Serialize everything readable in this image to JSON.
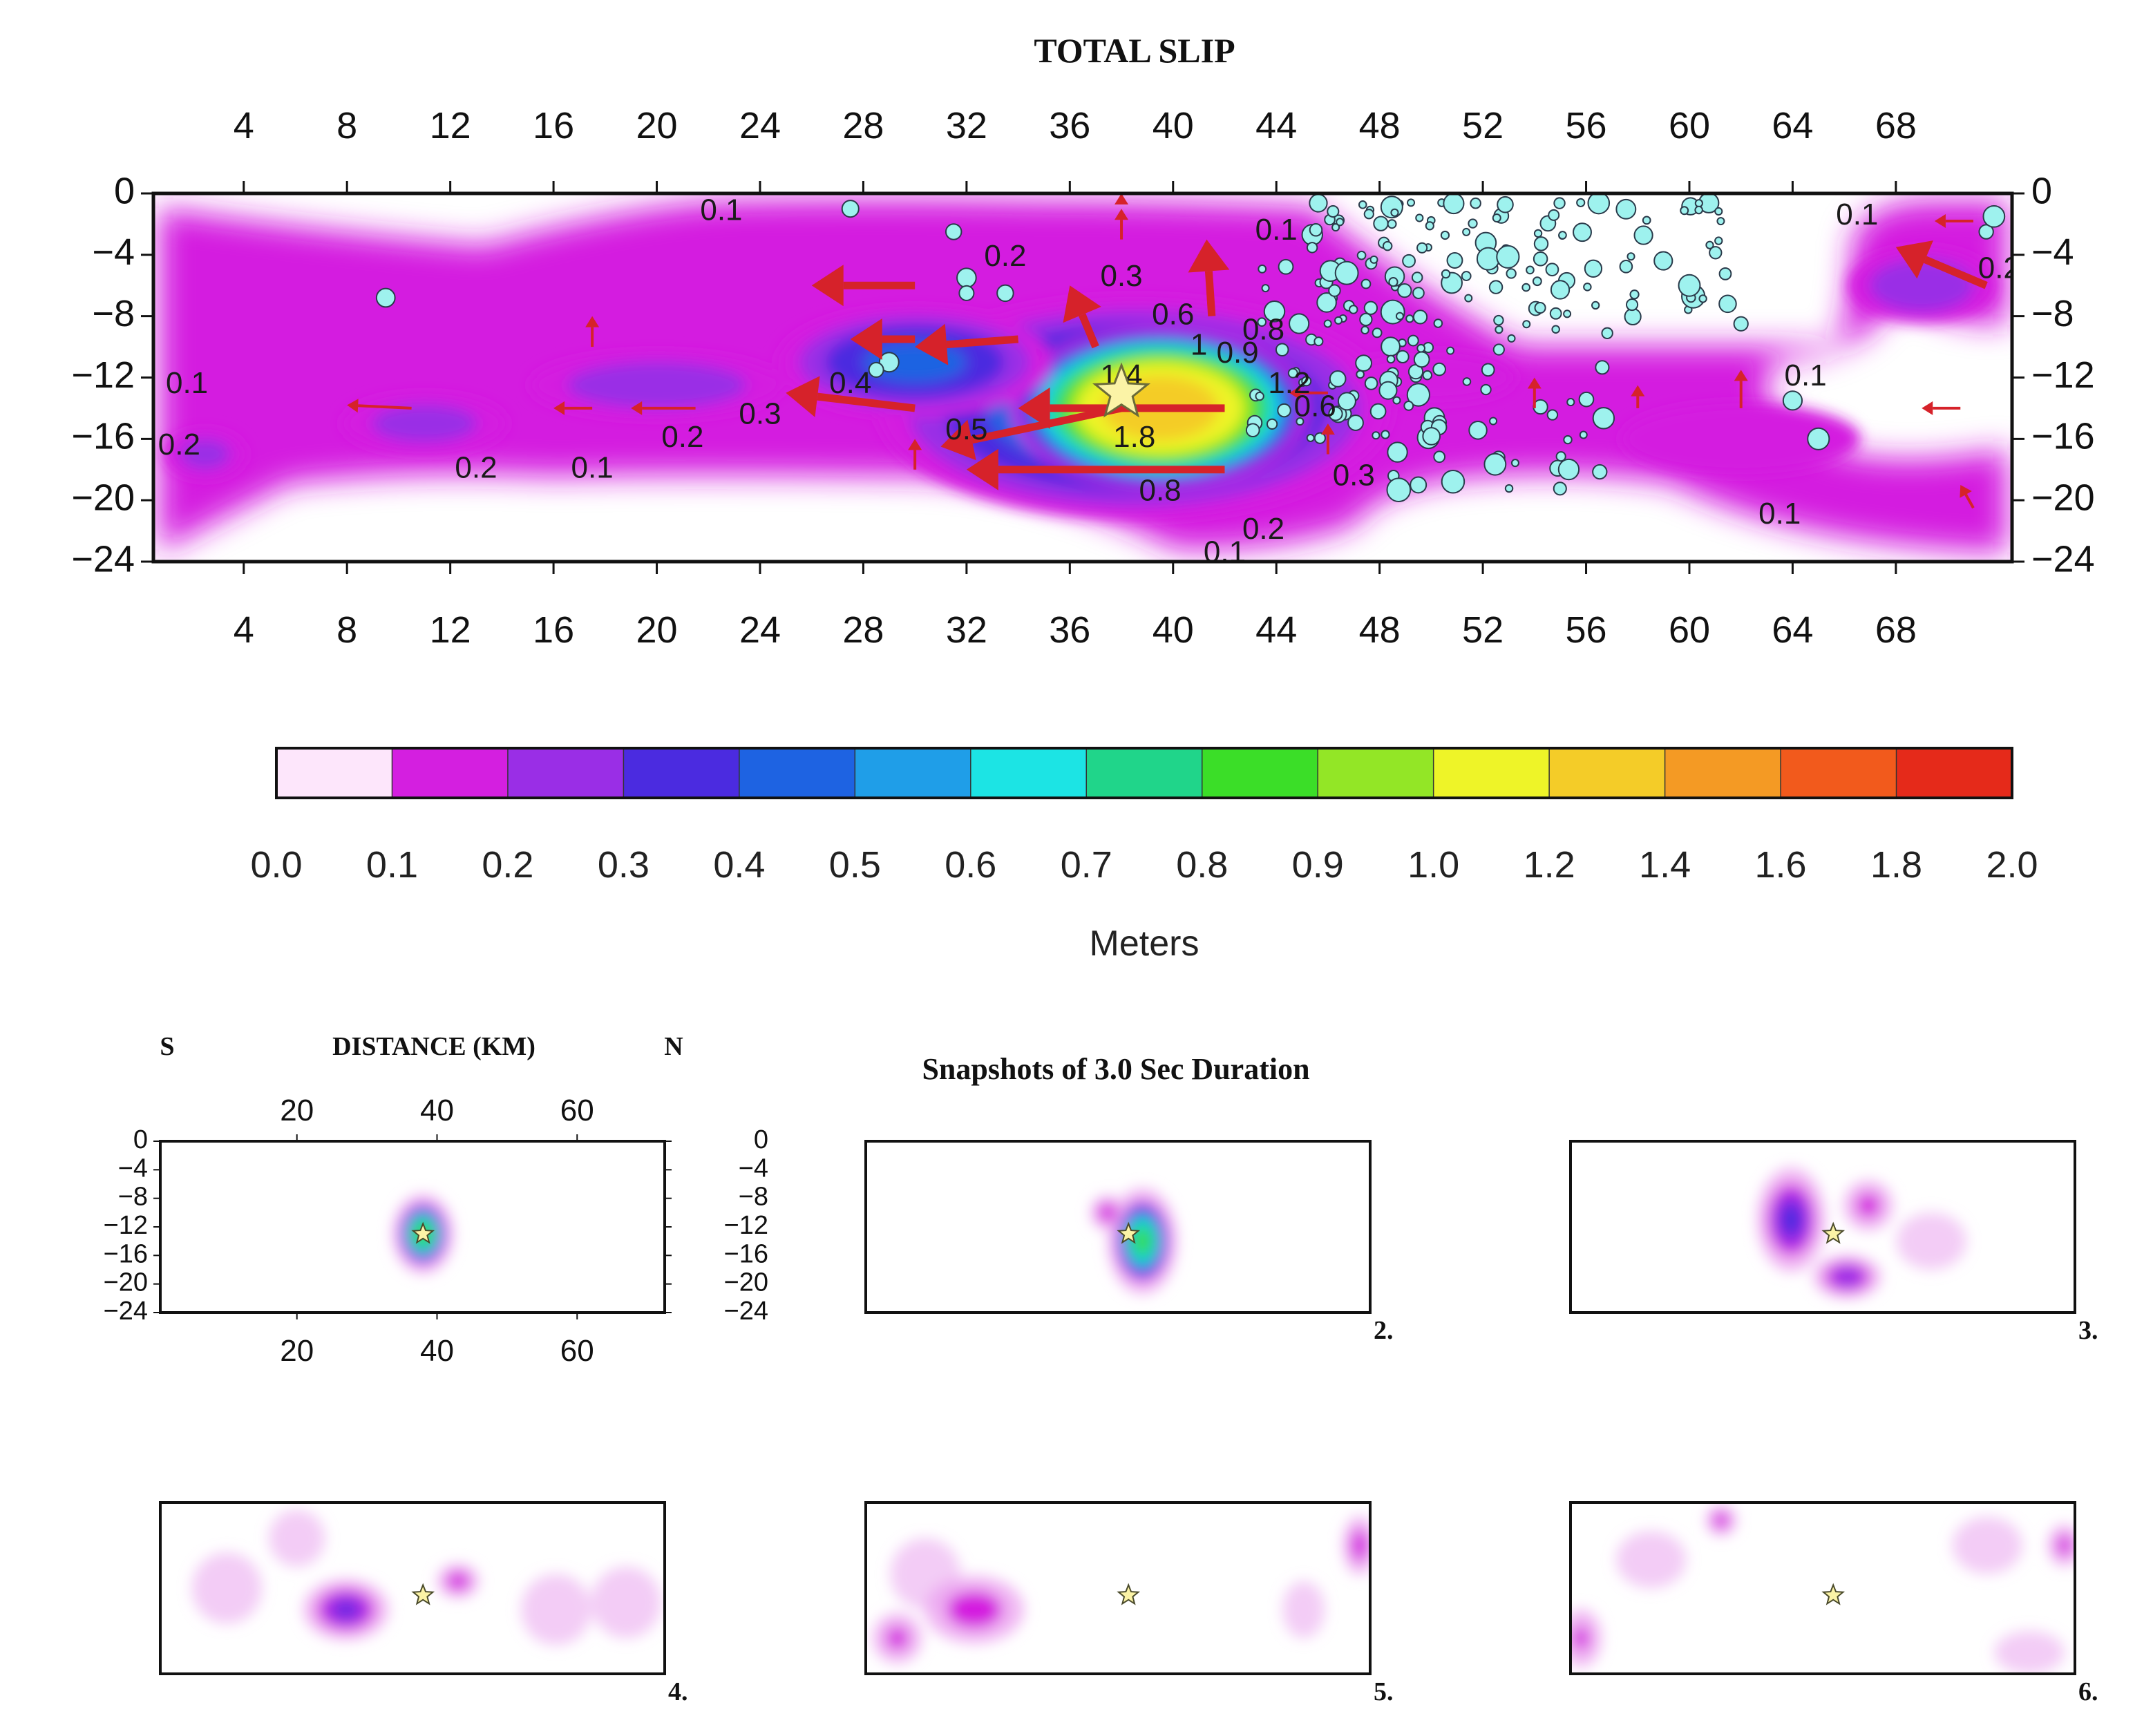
{
  "chart_data": {
    "type": "heatmap",
    "title": "TOTAL SLIP",
    "x_ticks": [
      4,
      8,
      12,
      16,
      20,
      24,
      28,
      32,
      36,
      40,
      44,
      48,
      52,
      56,
      60,
      64,
      68
    ],
    "y_ticks": [
      0,
      -4,
      -8,
      -12,
      -16,
      -20,
      -24
    ],
    "xlim": [
      0.5,
      72.5
    ],
    "ylim": [
      -24,
      0
    ],
    "grid": false,
    "colorbar": {
      "label": "Meters",
      "bounds": [
        0.0,
        0.1,
        0.2,
        0.3,
        0.4,
        0.5,
        0.6,
        0.7,
        0.8,
        0.9,
        1.0,
        1.2,
        1.4,
        1.6,
        1.8,
        2.0
      ],
      "tick_labels": [
        "0.0",
        "0.1",
        "0.2",
        "0.3",
        "0.4",
        "0.5",
        "0.6",
        "0.7",
        "0.8",
        "0.9",
        "1.0",
        "1.2",
        "1.4",
        "1.6",
        "1.8",
        "2.0"
      ],
      "colors": [
        "#fde6fb",
        "#d41fe0",
        "#9a2ee6",
        "#4b2be0",
        "#1e63e2",
        "#1f9ee8",
        "#1ce4e4",
        "#20d58a",
        "#3bde28",
        "#93e626",
        "#eef428",
        "#f4cc28",
        "#f49a24",
        "#f25a1c",
        "#e52a1a"
      ]
    },
    "slip_patches": [
      {
        "x": 38.5,
        "y": -14,
        "rx": 11,
        "ry": 8,
        "value": 0.55
      },
      {
        "x": 39.5,
        "y": -14,
        "rx": 6,
        "ry": 5.5,
        "value": 1.4
      },
      {
        "x": 30,
        "y": -11,
        "rx": 6,
        "ry": 4,
        "value": 0.45
      },
      {
        "x": 20,
        "y": -12.5,
        "rx": 6,
        "ry": 2.6,
        "value": 0.3
      },
      {
        "x": 11,
        "y": -15,
        "rx": 4,
        "ry": 2.4,
        "value": 0.27
      },
      {
        "x": 2.5,
        "y": -17,
        "rx": 2,
        "ry": 2,
        "value": 0.26
      },
      {
        "x": 69,
        "y": -6,
        "rx": 3.5,
        "ry": 3,
        "value": 0.3
      },
      {
        "x": 50,
        "y": -12,
        "rx": 8,
        "ry": 4,
        "value": 0.12
      },
      {
        "x": 62,
        "y": -16,
        "rx": 8,
        "ry": 4,
        "value": 0.15
      }
    ],
    "hypocenter": {
      "x": 38,
      "y": -13
    },
    "slip_vectors": [
      {
        "x": 30,
        "y": -6,
        "dx": -4,
        "dy": 0,
        "size": "large"
      },
      {
        "x": 34,
        "y": -9.5,
        "dx": -4,
        "dy": -0.5,
        "size": "large"
      },
      {
        "x": 30,
        "y": -9.5,
        "dx": -2.5,
        "dy": 0,
        "size": "large"
      },
      {
        "x": 38,
        "y": -14,
        "dx": -7,
        "dy": -2.5,
        "size": "large"
      },
      {
        "x": 30,
        "y": -14,
        "dx": -5,
        "dy": 1,
        "size": "large"
      },
      {
        "x": 42,
        "y": -14,
        "dx": -8,
        "dy": 0,
        "size": "large"
      },
      {
        "x": 42,
        "y": -18,
        "dx": -10,
        "dy": 0,
        "size": "large"
      },
      {
        "x": 37,
        "y": -10,
        "dx": -1,
        "dy": 4,
        "size": "large"
      },
      {
        "x": 41.5,
        "y": -8,
        "dx": -0.2,
        "dy": 5,
        "size": "large"
      },
      {
        "x": 38,
        "y": -3,
        "dx": 0,
        "dy": 2,
        "size": "small"
      },
      {
        "x": 38,
        "y": -0.5,
        "dx": 0,
        "dy": 0.5,
        "size": "small"
      },
      {
        "x": 17.5,
        "y": -10,
        "dx": 0,
        "dy": 2,
        "size": "small"
      },
      {
        "x": 10.5,
        "y": -14,
        "dx": -2.5,
        "dy": 0.2,
        "size": "small"
      },
      {
        "x": 17.5,
        "y": -14,
        "dx": -1.5,
        "dy": 0,
        "size": "small"
      },
      {
        "x": 21.5,
        "y": -14,
        "dx": -2.5,
        "dy": 0,
        "size": "small"
      },
      {
        "x": 30,
        "y": -18,
        "dx": 0,
        "dy": 2,
        "size": "small"
      },
      {
        "x": 46,
        "y": -17,
        "dx": 0,
        "dy": 2,
        "size": "small"
      },
      {
        "x": 46,
        "y": -13,
        "dx": -1.5,
        "dy": 0,
        "size": "small"
      },
      {
        "x": 54,
        "y": -14,
        "dx": 0,
        "dy": 2,
        "size": "small"
      },
      {
        "x": 58,
        "y": -14,
        "dx": 0,
        "dy": 1.5,
        "size": "small"
      },
      {
        "x": 62,
        "y": -14,
        "dx": 0,
        "dy": 2.5,
        "size": "small"
      },
      {
        "x": 70.5,
        "y": -14,
        "dx": -1.5,
        "dy": 0,
        "size": "small"
      },
      {
        "x": 71,
        "y": -20.5,
        "dx": -0.5,
        "dy": 1.5,
        "size": "small"
      },
      {
        "x": 71.5,
        "y": -6,
        "dx": -3.5,
        "dy": 2.5,
        "size": "large"
      },
      {
        "x": 71,
        "y": -1.8,
        "dx": -1.5,
        "dy": 0,
        "size": "small"
      }
    ],
    "contour_labels": [
      {
        "x": 22.5,
        "y": -1.2,
        "text": "0.1"
      },
      {
        "x": 33.5,
        "y": -4.2,
        "text": "0.2"
      },
      {
        "x": 38,
        "y": -5.5,
        "text": "0.3"
      },
      {
        "x": 40,
        "y": -8,
        "text": "0.6"
      },
      {
        "x": 42.5,
        "y": -10.5,
        "text": "0.9"
      },
      {
        "x": 43.5,
        "y": -9,
        "text": "0.8"
      },
      {
        "x": 44.5,
        "y": -12.5,
        "text": "1.2"
      },
      {
        "x": 41,
        "y": -10,
        "text": "1"
      },
      {
        "x": 38,
        "y": -12,
        "text": "1.4"
      },
      {
        "x": 38.5,
        "y": -16,
        "text": "1.8"
      },
      {
        "x": 39.5,
        "y": -19.5,
        "text": "0.8"
      },
      {
        "x": 27.5,
        "y": -12.5,
        "text": "0.4"
      },
      {
        "x": 32,
        "y": -15.5,
        "text": "0.5"
      },
      {
        "x": 24,
        "y": -14.5,
        "text": "0.3"
      },
      {
        "x": 21,
        "y": -16,
        "text": "0.2"
      },
      {
        "x": 17.5,
        "y": -18,
        "text": "0.1"
      },
      {
        "x": 13,
        "y": -18,
        "text": "0.2"
      },
      {
        "x": 1.8,
        "y": -12.5,
        "text": "0.1"
      },
      {
        "x": 1.5,
        "y": -16.5,
        "text": "0.2"
      },
      {
        "x": 44,
        "y": -2.5,
        "text": "0.1"
      },
      {
        "x": 45.5,
        "y": -14,
        "text": "0.6"
      },
      {
        "x": 47,
        "y": -18.5,
        "text": "0.3"
      },
      {
        "x": 43.5,
        "y": -22,
        "text": "0.2"
      },
      {
        "x": 42,
        "y": -23.5,
        "text": "0.1"
      },
      {
        "x": 64.5,
        "y": -12,
        "text": "0.1"
      },
      {
        "x": 63.5,
        "y": -21,
        "text": "0.1"
      },
      {
        "x": 66.5,
        "y": -1.5,
        "text": "0.1"
      },
      {
        "x": 72,
        "y": -5,
        "text": "0.2"
      }
    ],
    "aftershock_seed": 7,
    "snapshots": {
      "title": "Snapshots of 3.0 Sec Duration",
      "distance_label": "DISTANCE (KM)",
      "south_label": "S",
      "north_label": "N",
      "x_ticks": [
        20,
        40,
        60
      ],
      "y_ticks": [
        0,
        -4,
        -8,
        -12,
        -16,
        -20,
        -24
      ],
      "frames": [
        {
          "label": "",
          "patches": [
            {
              "x": 38,
              "y": -13,
              "rx": 3.5,
              "ry": 4.5,
              "value": 0.9
            }
          ]
        },
        {
          "label": "2.",
          "patches": [
            {
              "x": 40,
              "y": -14,
              "rx": 4,
              "ry": 6,
              "value": 0.85
            },
            {
              "x": 35,
              "y": -10,
              "rx": 2,
              "ry": 2,
              "value": 0.2
            }
          ]
        },
        {
          "label": "3.",
          "patches": [
            {
              "x": 32,
              "y": -11,
              "rx": 4,
              "ry": 6,
              "value": 0.35
            },
            {
              "x": 40,
              "y": -19,
              "rx": 4,
              "ry": 2.5,
              "value": 0.3
            },
            {
              "x": 43,
              "y": -9,
              "rx": 3,
              "ry": 3,
              "value": 0.15
            },
            {
              "x": 52,
              "y": -14,
              "rx": 5,
              "ry": 4,
              "value": 0.05
            }
          ]
        },
        {
          "label": "4.",
          "patches": [
            {
              "x": 27,
              "y": -15,
              "rx": 5,
              "ry": 3.5,
              "value": 0.32
            },
            {
              "x": 43,
              "y": -11,
              "rx": 2.5,
              "ry": 2,
              "value": 0.18
            },
            {
              "x": 10,
              "y": -12,
              "rx": 5,
              "ry": 5,
              "value": 0.05
            },
            {
              "x": 57,
              "y": -15,
              "rx": 5,
              "ry": 5,
              "value": 0.05
            },
            {
              "x": 67,
              "y": -14,
              "rx": 5,
              "ry": 5,
              "value": 0.05
            },
            {
              "x": 20,
              "y": -5,
              "rx": 4,
              "ry": 4,
              "value": 0.04
            }
          ]
        },
        {
          "label": "5.",
          "patches": [
            {
              "x": 16,
              "y": -15,
              "rx": 6,
              "ry": 4,
              "value": 0.18
            },
            {
              "x": 5,
              "y": -19,
              "rx": 3,
              "ry": 3,
              "value": 0.14
            },
            {
              "x": 71,
              "y": -6,
              "rx": 2,
              "ry": 3.5,
              "value": 0.17
            },
            {
              "x": 63,
              "y": -15,
              "rx": 3,
              "ry": 4,
              "value": 0.06
            },
            {
              "x": 9,
              "y": -10,
              "rx": 5,
              "ry": 5,
              "value": 0.04
            }
          ]
        },
        {
          "label": "6.",
          "patches": [
            {
              "x": 22,
              "y": -2.5,
              "rx": 1.8,
              "ry": 1.8,
              "value": 0.18
            },
            {
              "x": 71,
              "y": -6,
              "rx": 2,
              "ry": 2.5,
              "value": 0.15
            },
            {
              "x": 2,
              "y": -19,
              "rx": 2.5,
              "ry": 3.5,
              "value": 0.13
            },
            {
              "x": 66,
              "y": -21,
              "rx": 5,
              "ry": 3,
              "value": 0.06
            },
            {
              "x": 60,
              "y": -6,
              "rx": 5,
              "ry": 4,
              "value": 0.04
            },
            {
              "x": 12,
              "y": -8,
              "rx": 5,
              "ry": 4,
              "value": 0.04
            }
          ]
        }
      ],
      "hypocenter": {
        "x": 38,
        "y": -13
      }
    }
  }
}
